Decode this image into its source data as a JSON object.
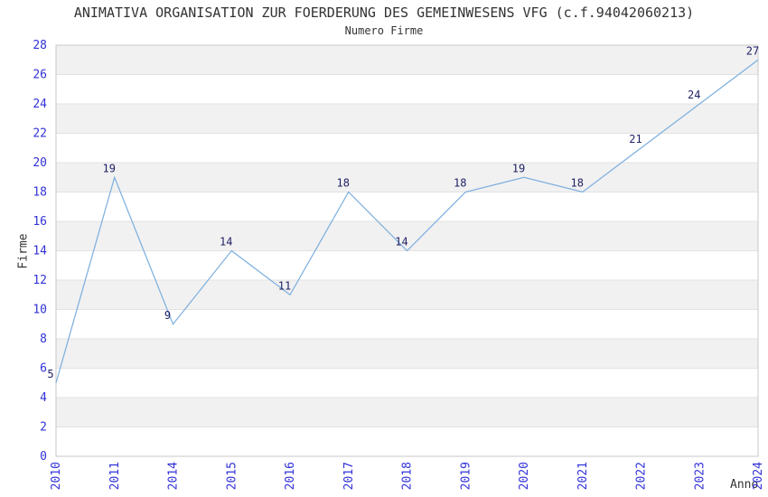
{
  "chart": {
    "title": "ANIMATIVA ORGANISATION ZUR FOERDERUNG DES GEMEINWESENS VFG (c.f.94042060213)",
    "subtitle": "Numero Firme",
    "ylabel": "Firme",
    "xlabel": "Anno"
  },
  "chart_data": {
    "type": "line",
    "title": "ANIMATIVA ORGANISATION ZUR FOERDERUNG DES GEMEINWESENS VFG (c.f.94042060213)",
    "subtitle": "Numero Firme",
    "xlabel": "Anno",
    "ylabel": "Firme",
    "categories": [
      "2010",
      "2011",
      "2014",
      "2015",
      "2016",
      "2017",
      "2018",
      "2019",
      "2020",
      "2021",
      "2022",
      "2023",
      "2024"
    ],
    "values": [
      5,
      19,
      9,
      14,
      11,
      18,
      14,
      18,
      19,
      18,
      21,
      24,
      27
    ],
    "ylim": [
      0,
      28
    ],
    "ytick_step": 2,
    "ytick_labels": [
      "0",
      "2",
      "4",
      "6",
      "8",
      "10",
      "12",
      "14",
      "16",
      "18",
      "20",
      "22",
      "24",
      "26",
      "28"
    ],
    "grid": "horizontal-bands-alternating",
    "legend": "none",
    "markers": "none",
    "data_labels_shown": true,
    "x_tick_rotation_deg": -90,
    "colors": {
      "line": "#7aaede",
      "tick_label": "#3232d8",
      "data_label": "#1f1f66",
      "band": "#f1f1f1",
      "band_alt": "#ffffff",
      "gridline": "#e2e2e2",
      "border": "#c9c9c9",
      "text": "#333333",
      "background": "#ffffff"
    }
  }
}
